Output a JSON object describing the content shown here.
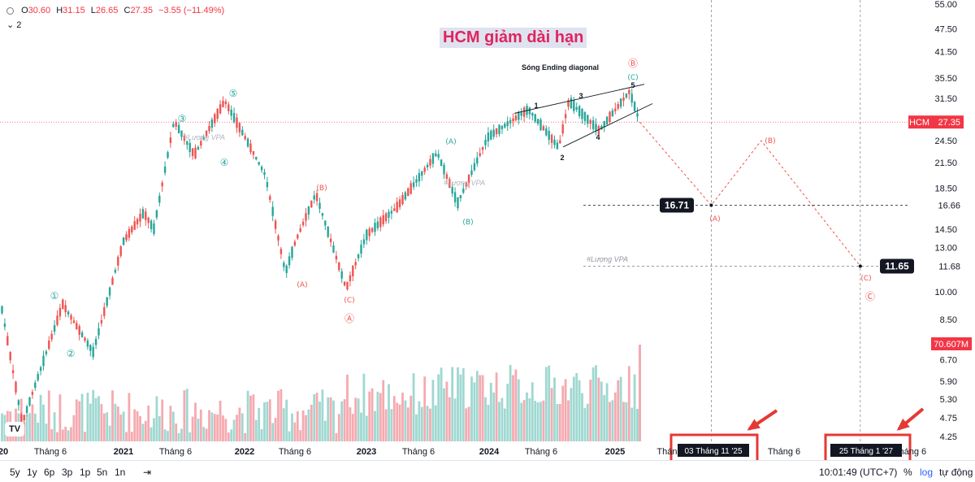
{
  "header": {
    "open_label": "O",
    "open": "30.60",
    "high_label": "H",
    "high": "31.15",
    "low_label": "L",
    "low": "26.65",
    "close_label": "C",
    "close": "27.35",
    "change": "−3.55 (−11.49%)",
    "indicator_count": "2"
  },
  "annotations": {
    "title": "HCM giảm dài hạn",
    "wave_title": "Sóng Ending diagonal",
    "watermark": "#Lượng VPA",
    "wave_labels_main": [
      "①",
      "②",
      "③",
      "④",
      "⑤",
      "Ⓐ",
      "Ⓑ",
      "Ⓒ"
    ],
    "wave_labels_sub": [
      "(A)",
      "(B)",
      "(C)"
    ],
    "diagonal_labels": [
      "1",
      "2",
      "3",
      "4",
      "5"
    ],
    "target_a": "16.71",
    "target_c": "11.65"
  },
  "price_axis": {
    "ticks": [
      "55.00",
      "47.50",
      "41.50",
      "35.50",
      "31.50",
      "27.35",
      "24.50",
      "21.50",
      "18.50",
      "16.66",
      "14.50",
      "13.00",
      "11.68",
      "10.00",
      "8.50",
      "6.70",
      "5.90",
      "5.30",
      "4.75",
      "4.25"
    ],
    "symbol_tag": "HCM",
    "last_price": "27.35",
    "volume_tag": "70.607M",
    "marker_16": "16.66",
    "marker_11": "11.68"
  },
  "time_axis": {
    "ticks": [
      "20",
      "Tháng 6",
      "2021",
      "Tháng 6",
      "2022",
      "Tháng 6",
      "2023",
      "Tháng 6",
      "2024",
      "Tháng 6",
      "2025",
      "Tháng",
      "Tháng 6",
      "Tháng 6"
    ],
    "cursor_a": "03 Tháng 11 '25",
    "cursor_c": "25 Tháng 1 '27"
  },
  "bottom_bar": {
    "ranges": [
      "5y",
      "1y",
      "6p",
      "3p",
      "1p",
      "5n",
      "1n"
    ],
    "clock": "10:01:49 (UTC+7)",
    "percent": "%",
    "log": "log",
    "auto": "tự động"
  },
  "colors": {
    "up": "#26a69a",
    "down": "#ef5350",
    "accent": "#2962ff",
    "highlight": "#e53935"
  },
  "chart_data": {
    "type": "candlestick",
    "title": "HCM giảm dài hạn",
    "y_scale": "log",
    "ylim": [
      4.0,
      55.0
    ],
    "x_range": [
      "2020",
      "2027-02"
    ],
    "last_close": 27.35,
    "last_volume": "70.607M",
    "swing_points": [
      {
        "label": "①",
        "date": "2020-07",
        "price": 9.3
      },
      {
        "label": "②",
        "date": "2020-10",
        "price": 7.0
      },
      {
        "label": "③",
        "date": "2021-06",
        "price": 27.5
      },
      {
        "label": "④",
        "date": "2021-08",
        "price": 22.5
      },
      {
        "label": "⑤",
        "date": "2021-11",
        "price": 31.0
      },
      {
        "label": "(A)",
        "date": "2022-05",
        "price": 11.2
      },
      {
        "label": "(B)",
        "date": "2022-08",
        "price": 17.9
      },
      {
        "label": "(C)",
        "date": "2022-11",
        "price": 10.2
      },
      {
        "label": "(A)",
        "date": "2023-08",
        "price": 22.8
      },
      {
        "label": "(B)",
        "date": "2023-10",
        "price": 16.9
      },
      {
        "label": "1",
        "date": "2024-05",
        "price": 29.5
      },
      {
        "label": "2",
        "date": "2024-08",
        "price": 23.5
      },
      {
        "label": "3",
        "date": "2024-09",
        "price": 31.0
      },
      {
        "label": "4",
        "date": "2024-12",
        "price": 26.0
      },
      {
        "label": "5",
        "date": "2025-03",
        "price": 32.8
      }
    ],
    "projection": [
      {
        "label": "start",
        "date": "2025-04",
        "price": 27.35
      },
      {
        "label": "(A)",
        "date": "2025-11-03",
        "price": 16.71
      },
      {
        "label": "(B)",
        "date": "2026-04",
        "price": 24.5
      },
      {
        "label": "(C)",
        "date": "2027-01-25",
        "price": 11.65
      }
    ]
  }
}
